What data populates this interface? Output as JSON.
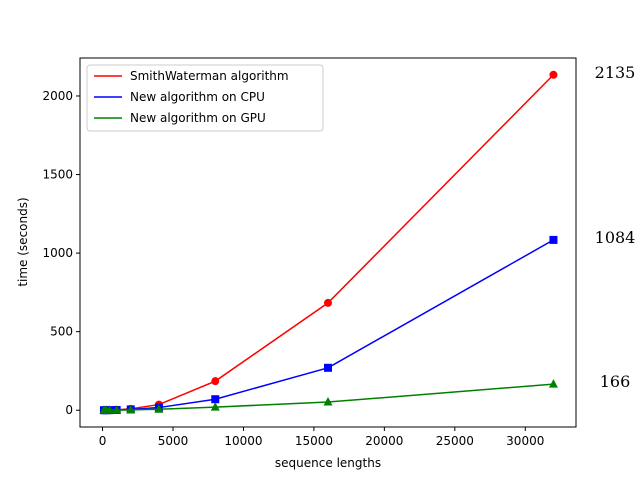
{
  "chart_data": {
    "type": "line",
    "xlabel": "sequence lengths",
    "ylabel": "time (seconds)",
    "xlim": [
      -1600,
      33600
    ],
    "ylim": [
      -106.75,
      2241.75
    ],
    "xticks": [
      0,
      5000,
      10000,
      15000,
      20000,
      25000,
      30000
    ],
    "xtick_labels": [
      "0",
      "5000",
      "10000",
      "15000",
      "20000",
      "25000",
      "30000"
    ],
    "yticks": [
      0,
      500,
      1000,
      1500,
      2000
    ],
    "ytick_labels": [
      "0",
      "500",
      "1000",
      "1500",
      "2000"
    ],
    "grid": false,
    "legend_position": "upper-left",
    "x": [
      100,
      250,
      500,
      1000,
      2000,
      4000,
      8000,
      16000,
      32000
    ],
    "series": [
      {
        "name": "SmithWaterman algorithm",
        "color": "#ff0000",
        "marker": "circle",
        "values": [
          0.1,
          0.3,
          0.8,
          2.5,
          9,
          36,
          185,
          683,
          2135
        ]
      },
      {
        "name": "New algorithm on CPU",
        "color": "#0000ff",
        "marker": "square",
        "values": [
          0.1,
          0.2,
          0.5,
          1.5,
          5,
          17,
          70,
          270,
          1084
        ]
      },
      {
        "name": "New algorithm on GPU",
        "color": "#008000",
        "marker": "triangle",
        "values": [
          0.05,
          0.1,
          0.3,
          0.8,
          2,
          6,
          20,
          52,
          166
        ]
      }
    ],
    "annotations": [
      {
        "text": "2135",
        "series": 0
      },
      {
        "text": "1084",
        "series": 1
      },
      {
        "text": "166",
        "series": 2
      }
    ]
  }
}
